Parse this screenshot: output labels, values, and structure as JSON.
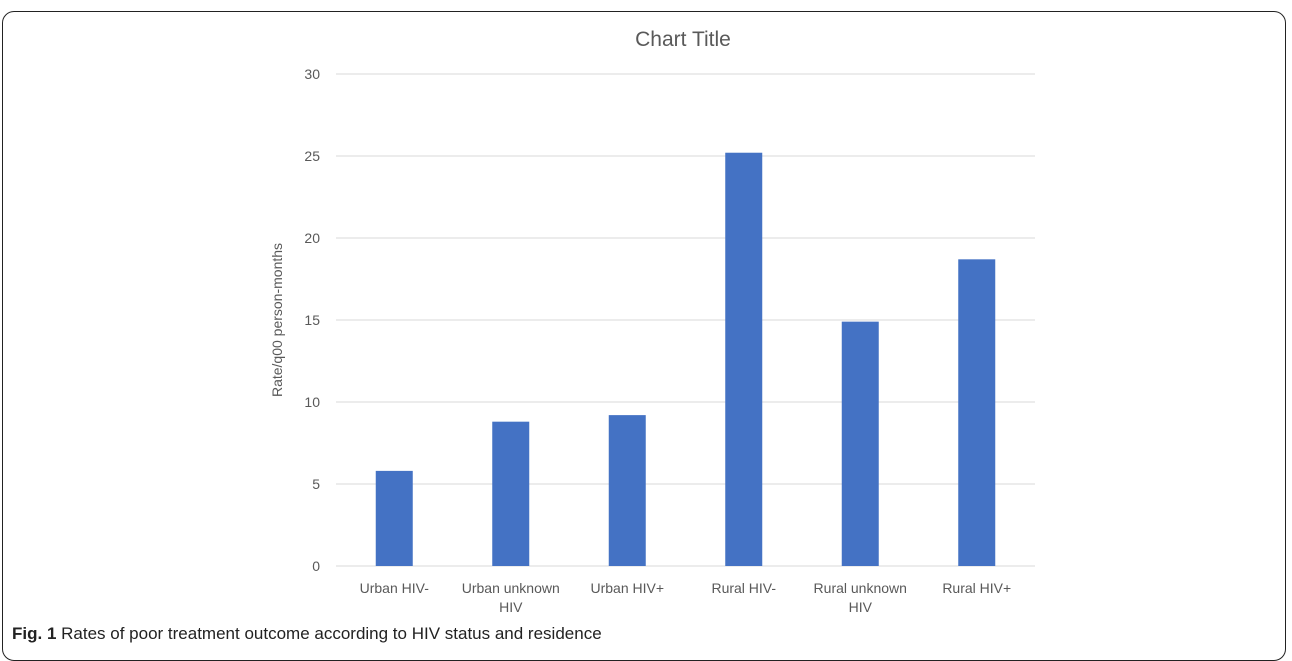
{
  "chart_data": {
    "type": "bar",
    "title": "Chart Title",
    "xlabel": "",
    "ylabel": "Rate/q00 person-months",
    "categories": [
      [
        "Urban HIV-"
      ],
      [
        "Urban unknown",
        "HIV"
      ],
      [
        "Urban HIV+"
      ],
      [
        "Rural HIV-"
      ],
      [
        "Rural unknown",
        "HIV"
      ],
      [
        "Rural HIV+"
      ]
    ],
    "values": [
      5.8,
      8.8,
      9.2,
      25.2,
      14.9,
      18.7
    ],
    "ylim": [
      0,
      30
    ],
    "yticks": [
      0,
      5,
      10,
      15,
      20,
      25,
      30
    ],
    "grid": true,
    "legend": "none",
    "bar_color": "#4472C4",
    "grid_color": "#D9D9D9",
    "text_color": "#595959"
  },
  "caption": {
    "label": "Fig. 1",
    "text": " Rates of poor treatment outcome according to HIV status and residence"
  }
}
